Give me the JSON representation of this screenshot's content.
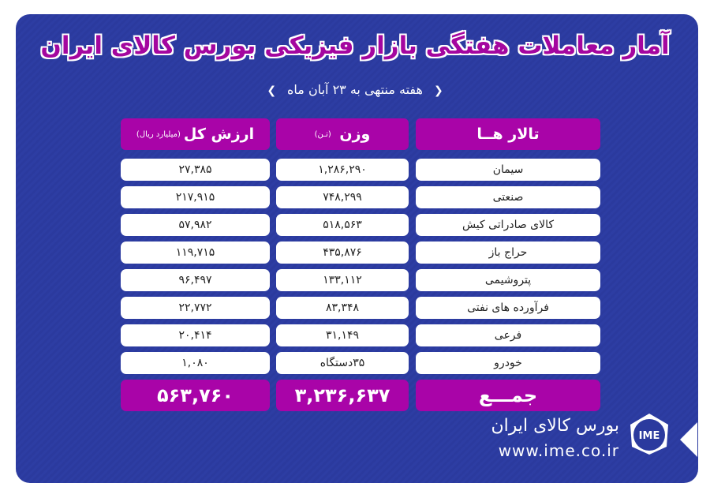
{
  "title": "آمار معاملات هفتگی بازار فیزیکی بورس کالای ایران",
  "subtitle": "هفته منتهی به ۲۳ آبان ماه",
  "headers": {
    "hall": "تالار هــا",
    "weight": "وزن",
    "weight_unit": "(تـن)",
    "value": "ارزش کل",
    "value_unit": "(میلیارد ریال)"
  },
  "rows": [
    {
      "hall": "سیمان",
      "weight": "۱,۲۸۶,۲۹۰",
      "value": "۲۷,۳۸۵"
    },
    {
      "hall": "صنعتی",
      "weight": "۷۴۸,۲۹۹",
      "value": "۲۱۷,۹۱۵"
    },
    {
      "hall": "کالای صادراتی کیش",
      "weight": "۵۱۸,۵۶۳",
      "value": "۵۷,۹۸۲"
    },
    {
      "hall": "حراج باز",
      "weight": "۴۳۵,۸۷۶",
      "value": "۱۱۹,۷۱۵"
    },
    {
      "hall": "پتروشیمی",
      "weight": "۱۳۳,۱۱۲",
      "value": "۹۶,۴۹۷"
    },
    {
      "hall": "فرآورده های نفتی",
      "weight": "۸۳,۳۴۸",
      "value": "۲۲,۷۷۲"
    },
    {
      "hall": "فرعی",
      "weight": "۳۱,۱۴۹",
      "value": "۲۰,۴۱۴"
    },
    {
      "hall": "خودرو",
      "weight": "۳۵دستگاه",
      "value": "۱,۰۸۰"
    }
  ],
  "total": {
    "label": "جمـــع",
    "weight": "۳,۲۳۶,۶۳۷",
    "value": "۵۶۳,۷۶۰"
  },
  "footer": {
    "brand": "بورس کالای ایران",
    "url": "www.ime.co.ir",
    "logo_text": "IME"
  },
  "colors": {
    "panel": "#2b3a9e",
    "accent": "#a904a8"
  }
}
